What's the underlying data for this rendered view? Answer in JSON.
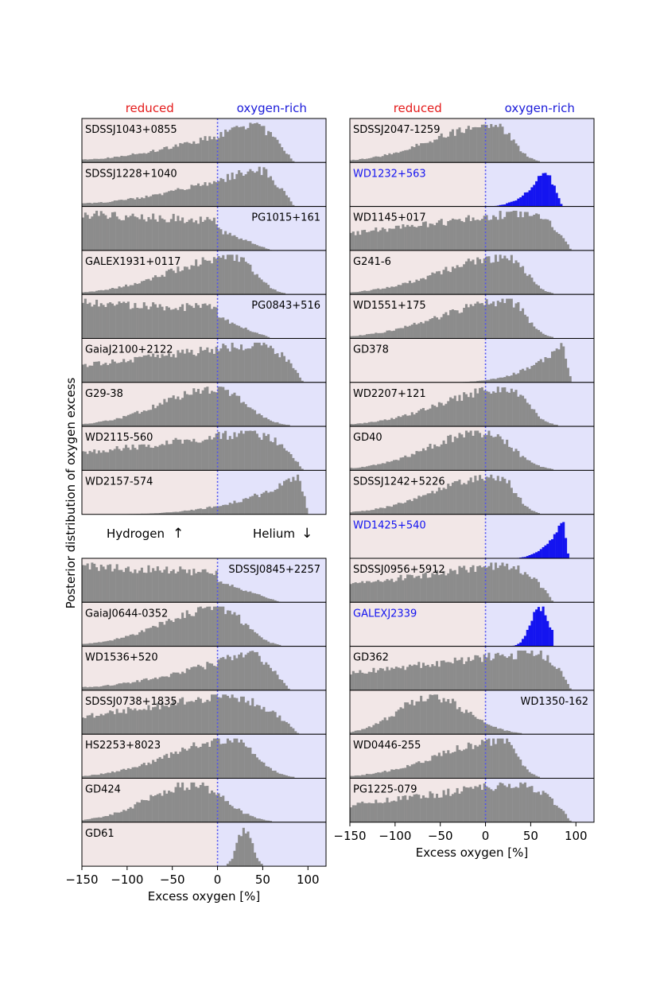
{
  "figure": {
    "ylabel": "Posterior distribution of oxygen excess",
    "xlabel": "Excess oxygen [%]",
    "region_labels": {
      "reduced": "reduced",
      "oxygen_rich": "oxygen-rich"
    },
    "group_labels": {
      "hydrogen": "Hydrogen",
      "helium": "Helium"
    },
    "colors": {
      "reduced_bg": "#f2e7e7",
      "oxygen_rich_bg": "#e3e3fb",
      "histogram": "#8c8c8c",
      "highlight": "#1414f0",
      "reduced_text": "#e41a1a",
      "oxygen_rich_text": "#1a1ad9",
      "zero_line": "#5050f0"
    }
  },
  "chart_data": [
    {
      "type": "histogram",
      "title": "",
      "xlabel": "Excess oxygen [%]",
      "xlim": [
        -150,
        120
      ],
      "xticks": [
        -150,
        -100,
        -50,
        0,
        50,
        100
      ],
      "panels": [
        {
          "label": "SDSSJ1043+0855",
          "label_pos": "left",
          "shape": "broad-right",
          "peak": 40,
          "lo": -150,
          "hi": 85,
          "highlight": false
        },
        {
          "label": "SDSSJ1228+1040",
          "label_pos": "left",
          "shape": "broad-right",
          "peak": 45,
          "lo": -150,
          "hi": 85,
          "highlight": false
        },
        {
          "label": "PG1015+161",
          "label_pos": "right",
          "shape": "flat-left",
          "peak": -100,
          "lo": -150,
          "hi": 60,
          "highlight": false
        },
        {
          "label": "GALEX1931+0117",
          "label_pos": "left",
          "shape": "peaked",
          "peak": 20,
          "lo": -150,
          "hi": 75,
          "highlight": false
        },
        {
          "label": "PG0843+516",
          "label_pos": "right",
          "shape": "flat-left",
          "peak": -100,
          "lo": -150,
          "hi": 60,
          "highlight": false
        },
        {
          "label": "GaiaJ2100+2122",
          "label_pos": "left",
          "shape": "plateau",
          "peak": 40,
          "lo": -150,
          "hi": 95,
          "highlight": false
        },
        {
          "label": "G29-38",
          "label_pos": "left",
          "shape": "peaked",
          "peak": 0,
          "lo": -150,
          "hi": 80,
          "highlight": false
        },
        {
          "label": "WD2115-560",
          "label_pos": "left",
          "shape": "plateau",
          "peak": 30,
          "lo": -150,
          "hi": 95,
          "highlight": false
        },
        {
          "label": "WD2157-574",
          "label_pos": "left",
          "shape": "ramp-right",
          "peak": 90,
          "lo": -150,
          "hi": 100,
          "highlight": false
        },
        {
          "label": "SDSSJ0845+2257",
          "label_pos": "right",
          "shape": "flat-left",
          "peak": -70,
          "lo": -150,
          "hi": 70,
          "highlight": false
        },
        {
          "label": "GaiaJ0644-0352",
          "label_pos": "left",
          "shape": "peaked",
          "peak": 5,
          "lo": -150,
          "hi": 70,
          "highlight": false
        },
        {
          "label": "WD1536+520",
          "label_pos": "left",
          "shape": "broad-right",
          "peak": 35,
          "lo": -150,
          "hi": 80,
          "highlight": false
        },
        {
          "label": "SDSSJ0738+1835",
          "label_pos": "left",
          "shape": "plateau",
          "peak": 0,
          "lo": -150,
          "hi": 90,
          "highlight": false
        },
        {
          "label": "HS2253+8023",
          "label_pos": "left",
          "shape": "peaked",
          "peak": 15,
          "lo": -150,
          "hi": 85,
          "highlight": false
        },
        {
          "label": "GD424",
          "label_pos": "left",
          "shape": "peaked",
          "peak": -25,
          "lo": -150,
          "hi": 60,
          "highlight": false
        },
        {
          "label": "GD61",
          "label_pos": "left",
          "shape": "narrow",
          "peak": 30,
          "lo": 10,
          "hi": 50,
          "highlight": false
        }
      ]
    },
    {
      "type": "histogram",
      "title": "",
      "xlabel": "Excess oxygen [%]",
      "xlim": [
        -150,
        120
      ],
      "xticks": [
        -150,
        -100,
        -50,
        0,
        50,
        100
      ],
      "panels": [
        {
          "label": "SDSSJ2047-1259",
          "label_pos": "left",
          "shape": "peaked",
          "peak": 10,
          "lo": -150,
          "hi": 60,
          "highlight": false
        },
        {
          "label": "WD1232+563",
          "label_pos": "left",
          "shape": "ramp-right",
          "peak": 65,
          "lo": -10,
          "hi": 85,
          "highlight": true
        },
        {
          "label": "WD1145+017",
          "label_pos": "left",
          "shape": "plateau",
          "peak": 40,
          "lo": -150,
          "hi": 95,
          "highlight": false
        },
        {
          "label": "G241-6",
          "label_pos": "left",
          "shape": "peaked",
          "peak": 25,
          "lo": -150,
          "hi": 75,
          "highlight": false
        },
        {
          "label": "WD1551+175",
          "label_pos": "left",
          "shape": "peaked",
          "peak": 25,
          "lo": -150,
          "hi": 75,
          "highlight": false
        },
        {
          "label": "GD378",
          "label_pos": "left",
          "shape": "ramp-right",
          "peak": 85,
          "lo": -60,
          "hi": 95,
          "highlight": false
        },
        {
          "label": "WD2207+121",
          "label_pos": "left",
          "shape": "peaked",
          "peak": 25,
          "lo": -150,
          "hi": 80,
          "highlight": false
        },
        {
          "label": "GD40",
          "label_pos": "left",
          "shape": "peaked",
          "peak": 0,
          "lo": -150,
          "hi": 75,
          "highlight": false
        },
        {
          "label": "SDSSJ1242+5226",
          "label_pos": "left",
          "shape": "peaked",
          "peak": 15,
          "lo": -150,
          "hi": 60,
          "highlight": false
        },
        {
          "label": "WD1425+540",
          "label_pos": "left",
          "shape": "ramp-right",
          "peak": 85,
          "lo": 20,
          "hi": 92,
          "highlight": true
        },
        {
          "label": "SDSSJ0956+5912",
          "label_pos": "left",
          "shape": "plateau",
          "peak": 15,
          "lo": -150,
          "hi": 75,
          "highlight": false
        },
        {
          "label": "GALEXJ2339",
          "label_pos": "left",
          "shape": "narrow",
          "peak": 60,
          "lo": 25,
          "hi": 75,
          "highlight": true
        },
        {
          "label": "GD362",
          "label_pos": "left",
          "shape": "plateau",
          "peak": 50,
          "lo": -150,
          "hi": 95,
          "highlight": false
        },
        {
          "label": "WD1350-162",
          "label_pos": "right",
          "shape": "peaked",
          "peak": -60,
          "lo": -150,
          "hi": 40,
          "highlight": false
        },
        {
          "label": "WD0446-255",
          "label_pos": "left",
          "shape": "peaked",
          "peak": 20,
          "lo": -150,
          "hi": 60,
          "highlight": false
        },
        {
          "label": "PG1225-079",
          "label_pos": "left",
          "shape": "plateau",
          "peak": 30,
          "lo": -150,
          "hi": 95,
          "highlight": false
        }
      ]
    }
  ]
}
